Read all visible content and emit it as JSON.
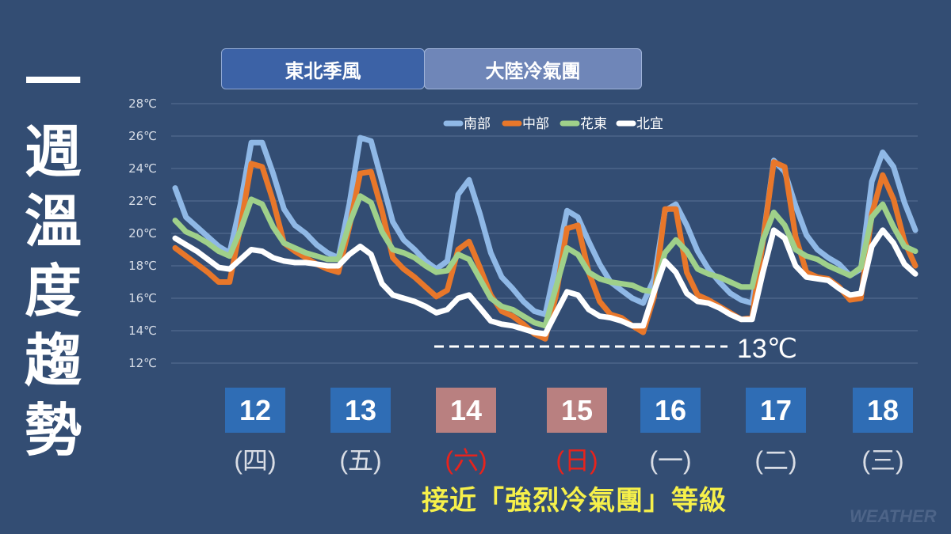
{
  "title_chars": [
    "一",
    "週",
    "溫",
    "度",
    "趨",
    "勢"
  ],
  "period_tags": [
    "東北季風",
    "大陸冷氣團"
  ],
  "threshold": {
    "value": 13,
    "label": "13℃"
  },
  "dates": [
    {
      "day": "12",
      "weekday": "(四)",
      "weekend": false
    },
    {
      "day": "13",
      "weekday": "(五)",
      "weekend": false
    },
    {
      "day": "14",
      "weekday": "(六)",
      "weekend": true
    },
    {
      "day": "15",
      "weekday": "(日)",
      "weekend": true
    },
    {
      "day": "16",
      "weekday": "(一)",
      "weekend": false
    },
    {
      "day": "17",
      "weekday": "(二)",
      "weekend": false
    },
    {
      "day": "18",
      "weekday": "(三)",
      "weekend": false
    }
  ],
  "footnote": "接近「強烈冷氣團」等級",
  "watermark": "WEATHER",
  "colors": {
    "weekday_box": "#2f6db5",
    "weekend_box": "#b98080",
    "weekday_text": "#d9dde5",
    "weekend_text": "#e8231c"
  },
  "chart_data": {
    "type": "line",
    "y_unit": "℃",
    "ylim": [
      12,
      28
    ],
    "yticks": [
      12,
      14,
      16,
      18,
      20,
      22,
      24,
      26,
      28
    ],
    "x_step_hours": 3,
    "x_start": "12日 00時",
    "legend_position": "top",
    "series": [
      {
        "name": "南部",
        "color": "#8fb8e6",
        "values": [
          22.8,
          21.0,
          20.4,
          19.8,
          19.2,
          18.8,
          21.8,
          25.6,
          25.6,
          23.7,
          21.5,
          20.5,
          20.0,
          19.3,
          18.8,
          18.5,
          21.8,
          25.9,
          25.7,
          23.2,
          20.7,
          19.6,
          19.0,
          18.3,
          17.8,
          18.3,
          22.4,
          23.3,
          21.2,
          18.8,
          17.3,
          16.6,
          15.8,
          15.2,
          15.0,
          18.1,
          21.4,
          21.0,
          19.5,
          18.1,
          17.0,
          16.5,
          16.0,
          15.7,
          17.2,
          21.4,
          21.8,
          20.5,
          18.9,
          17.8,
          17.0,
          16.3,
          15.9,
          15.7,
          19.6,
          24.5,
          23.8,
          21.7,
          19.9,
          19.0,
          18.5,
          18.1,
          17.4,
          17.8,
          23.2,
          25.0,
          24.1,
          21.9,
          20.2
        ]
      },
      {
        "name": "中部",
        "color": "#e8772a",
        "values": [
          19.1,
          18.6,
          18.1,
          17.6,
          17.0,
          17.0,
          20.4,
          24.3,
          24.1,
          22.0,
          19.4,
          18.9,
          18.5,
          18.1,
          17.8,
          17.6,
          20.4,
          23.7,
          23.8,
          21.4,
          18.5,
          17.8,
          17.3,
          16.7,
          16.1,
          16.5,
          19.0,
          19.5,
          17.9,
          16.2,
          15.2,
          14.9,
          14.4,
          13.8,
          13.5,
          16.2,
          20.3,
          20.5,
          17.6,
          15.8,
          15.0,
          14.8,
          14.3,
          13.9,
          16.1,
          21.5,
          21.5,
          17.6,
          16.2,
          15.9,
          15.5,
          15.1,
          14.7,
          14.8,
          19.5,
          24.4,
          24.1,
          19.8,
          17.6,
          17.3,
          17.2,
          16.7,
          15.9,
          16.0,
          21.2,
          23.6,
          22.1,
          19.5,
          18.0
        ]
      },
      {
        "name": "花東",
        "color": "#9fd08a",
        "values": [
          20.8,
          20.1,
          19.8,
          19.4,
          18.9,
          18.6,
          20.2,
          22.1,
          21.8,
          20.4,
          19.4,
          19.1,
          18.8,
          18.6,
          18.4,
          18.4,
          20.6,
          22.3,
          21.9,
          20.1,
          19.0,
          18.8,
          18.5,
          18.0,
          17.6,
          17.7,
          18.7,
          18.4,
          17.2,
          16.0,
          15.5,
          15.3,
          14.9,
          14.5,
          14.3,
          16.7,
          19.1,
          18.7,
          17.6,
          17.2,
          17.0,
          16.9,
          16.8,
          16.5,
          16.4,
          18.8,
          19.6,
          18.9,
          17.8,
          17.5,
          17.3,
          17.0,
          16.7,
          16.7,
          19.6,
          21.3,
          20.5,
          19.0,
          18.6,
          18.4,
          18.0,
          17.7,
          17.4,
          17.9,
          21.0,
          21.8,
          20.4,
          19.2,
          18.9
        ]
      },
      {
        "name": "北宜",
        "color": "#ffffff",
        "values": [
          19.7,
          19.3,
          18.9,
          18.4,
          17.9,
          17.8,
          18.4,
          19.0,
          18.9,
          18.5,
          18.3,
          18.2,
          18.2,
          18.1,
          18.0,
          18.0,
          18.7,
          19.2,
          18.7,
          16.9,
          16.2,
          16.0,
          15.8,
          15.5,
          15.1,
          15.3,
          16.0,
          16.2,
          15.4,
          14.6,
          14.4,
          14.3,
          14.1,
          13.9,
          13.8,
          15.1,
          16.4,
          16.2,
          15.3,
          14.9,
          14.8,
          14.6,
          14.3,
          14.3,
          16.4,
          18.3,
          17.6,
          16.3,
          15.8,
          15.7,
          15.4,
          15.0,
          14.7,
          14.7,
          17.6,
          20.2,
          19.7,
          18.0,
          17.3,
          17.2,
          17.1,
          16.6,
          16.2,
          16.3,
          19.2,
          20.2,
          19.4,
          18.1,
          17.5
        ]
      }
    ]
  }
}
